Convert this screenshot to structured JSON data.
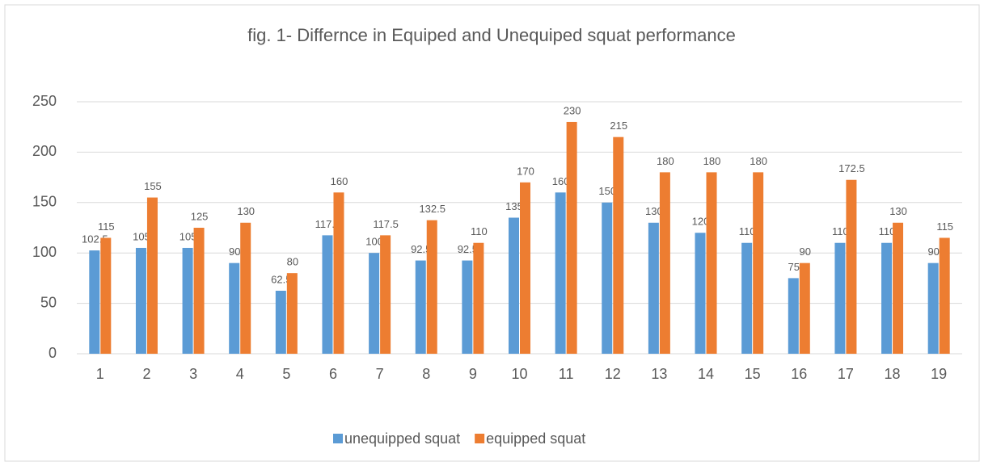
{
  "chart_data": {
    "type": "bar",
    "title": "fig. 1- Differnce in Equiped and Unequiped squat performance",
    "categories": [
      "1",
      "2",
      "3",
      "4",
      "5",
      "6",
      "7",
      "8",
      "9",
      "10",
      "11",
      "12",
      "13",
      "14",
      "15",
      "16",
      "17",
      "18",
      "19"
    ],
    "series": [
      {
        "name": "unequipped squat",
        "color": "#5b9bd5",
        "values": [
          102.5,
          105,
          105,
          90,
          62.5,
          117.5,
          100,
          92.5,
          92.5,
          135,
          160,
          150,
          130,
          120,
          110,
          75,
          110,
          110,
          90
        ]
      },
      {
        "name": "equipped squat",
        "color": "#ed7d31",
        "values": [
          115,
          155,
          125,
          130,
          80,
          160,
          117.5,
          132.5,
          110,
          170,
          230,
          215,
          180,
          180,
          180,
          90,
          172.5,
          130,
          115
        ]
      }
    ],
    "ylim": [
      0,
      250
    ],
    "yticks": [
      0,
      50,
      100,
      150,
      200,
      250
    ],
    "grid": true,
    "legend": "bottom"
  }
}
